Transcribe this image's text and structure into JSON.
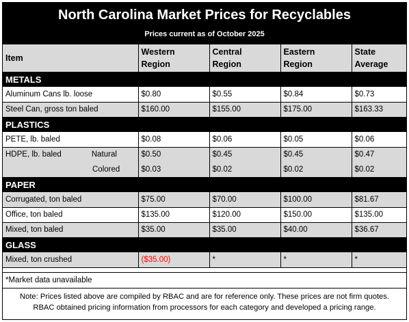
{
  "title": "North Carolina Market Prices for Recyclables",
  "subtitle": "Prices current as of October 2025",
  "colors": {
    "banner": "#000000",
    "header_bg": "#d9d9d9",
    "alt_row_bg": "#d9d9d9",
    "negative_text": "#ff0000"
  },
  "columns": {
    "item": "Item",
    "western": [
      "Western",
      "Region"
    ],
    "central": [
      "Central",
      "Region"
    ],
    "eastern": [
      "Eastern",
      "Region"
    ],
    "state": [
      "State",
      "Average"
    ]
  },
  "sections": {
    "metals": {
      "name": "METALS",
      "rows": [
        {
          "item": "Aluminum Cans lb. loose",
          "western": "$0.80",
          "central": "$0.55",
          "eastern": "$0.84",
          "state": "$0.73"
        },
        {
          "item": "Steel Can, gross ton baled",
          "western": "$160.00",
          "central": "$155.00",
          "eastern": "$175.00",
          "state": "$163.33"
        }
      ]
    },
    "plastics": {
      "name": "PLASTICS",
      "rows": [
        {
          "item": "PETE, lb. baled",
          "western": "$0.08",
          "central": "$0.06",
          "eastern": "$0.05",
          "state": "$0.06"
        },
        {
          "item": "HDPE, lb. baled",
          "sub": "Natural",
          "western": "$0.50",
          "central": "$0.45",
          "eastern": "$0.45",
          "state": "$0.47"
        },
        {
          "item": "",
          "sub": "Colored",
          "western": "$0.03",
          "central": "$0.02",
          "eastern": "$0.02",
          "state": "$0.02"
        }
      ]
    },
    "paper": {
      "name": "PAPER",
      "rows": [
        {
          "item": "Corrugated, ton baled",
          "western": "$75.00",
          "central": "$70.00",
          "eastern": "$100.00",
          "state": "$81.67"
        },
        {
          "item": "Office, ton baled",
          "western": "$135.00",
          "central": "$120.00",
          "eastern": "$150.00",
          "state": "$135.00"
        },
        {
          "item": "Mixed, ton baled",
          "western": "$35.00",
          "central": "$35.00",
          "eastern": "$40.00",
          "state": "$36.67"
        }
      ]
    },
    "glass": {
      "name": "GLASS",
      "rows": [
        {
          "item": "Mixed, ton crushed",
          "western": "($35.00)",
          "central": "*",
          "eastern": "*",
          "state": "*"
        }
      ]
    }
  },
  "footnote": "*Market data unavailable",
  "note": {
    "line1": "Note: Prices listed above are compiled by RBAC and are for reference only. These prices are not firm quotes.",
    "line2": "RBAC obtained pricing information from processors for each category and developed a pricing range."
  }
}
